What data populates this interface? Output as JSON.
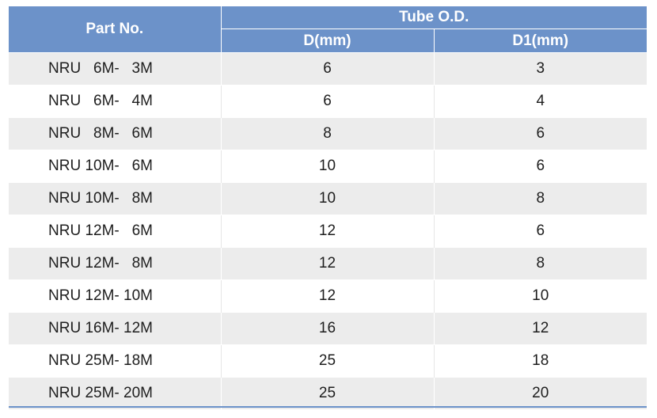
{
  "header": {
    "part_no": "Part No.",
    "tube_od": "Tube O.D.",
    "d": "D(mm)",
    "d1": "D1(mm)"
  },
  "rows": [
    {
      "part": "NRU   6M-   3M",
      "d": "6",
      "d1": "3"
    },
    {
      "part": "NRU   6M-   4M",
      "d": "6",
      "d1": "4"
    },
    {
      "part": "NRU   8M-   6M",
      "d": "8",
      "d1": "6"
    },
    {
      "part": "NRU 10M-   6M",
      "d": "10",
      "d1": "6"
    },
    {
      "part": "NRU 10M-   8M",
      "d": "10",
      "d1": "8"
    },
    {
      "part": "NRU 12M-   6M",
      "d": "12",
      "d1": "6"
    },
    {
      "part": "NRU 12M-   8M",
      "d": "12",
      "d1": "8"
    },
    {
      "part": "NRU 12M- 10M",
      "d": "12",
      "d1": "10"
    },
    {
      "part": "NRU 16M- 12M",
      "d": "16",
      "d1": "12"
    },
    {
      "part": "NRU 25M- 18M",
      "d": "25",
      "d1": "18"
    },
    {
      "part": "NRU 25M- 20M",
      "d": "25",
      "d1": "20"
    }
  ],
  "colors": {
    "header_bg": "#6c92c9",
    "header_text": "#ffffff",
    "stripe_bg": "#ececec"
  }
}
